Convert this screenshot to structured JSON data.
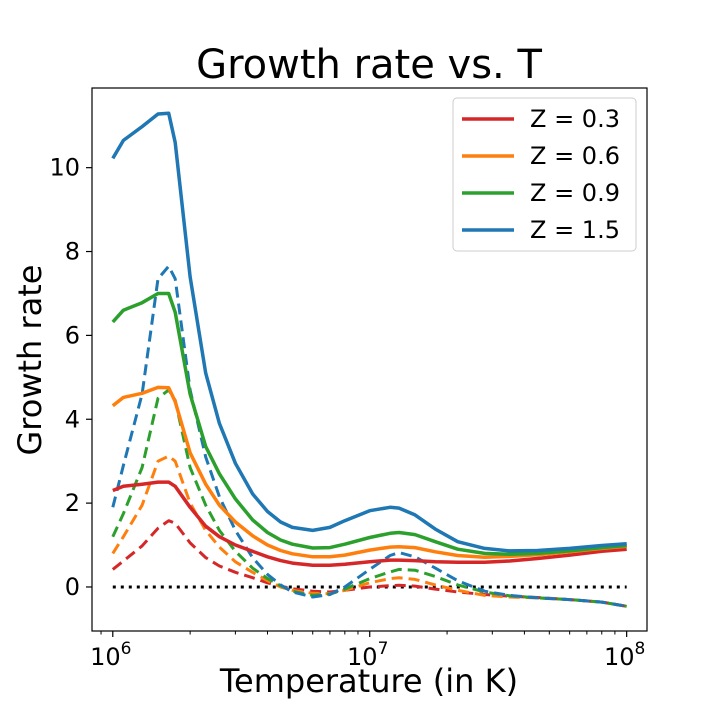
{
  "chart_data": {
    "type": "line",
    "title": "Growth rate vs. T",
    "xlabel": "Temperature (in K)",
    "ylabel": "Growth rate",
    "xscale": "log",
    "xlim": [
      830000,
      120000000
    ],
    "ylim": [
      -1.05,
      11.9
    ],
    "x_ticks": [
      {
        "value": 1000000,
        "base": "10",
        "exp": "6"
      },
      {
        "value": 10000000,
        "base": "10",
        "exp": "7"
      },
      {
        "value": 100000000,
        "base": "10",
        "exp": "8"
      }
    ],
    "y_ticks": [
      0,
      2,
      4,
      6,
      8,
      10
    ],
    "grid": false,
    "legend_position": "top-right",
    "x": [
      1000000,
      1100000,
      1300000,
      1500000,
      1650000,
      1750000,
      2000000,
      2300000,
      2600000,
      3000000,
      3500000,
      4000000,
      4500000,
      5000000,
      6000000,
      7000000,
      8000000,
      10000000,
      12000000,
      13000000,
      15000000,
      18000000,
      22000000,
      28000000,
      35000000,
      45000000,
      60000000,
      80000000,
      100000000
    ],
    "series": [
      {
        "name": "Z = 0.3",
        "color": "#d62728",
        "solid": [
          2.3,
          2.4,
          2.45,
          2.5,
          2.5,
          2.4,
          1.9,
          1.45,
          1.2,
          1.0,
          0.85,
          0.72,
          0.63,
          0.57,
          0.52,
          0.52,
          0.54,
          0.6,
          0.64,
          0.64,
          0.63,
          0.6,
          0.59,
          0.59,
          0.62,
          0.68,
          0.76,
          0.85,
          0.9
        ],
        "dashed": [
          0.42,
          0.62,
          0.98,
          1.4,
          1.58,
          1.52,
          1.05,
          0.7,
          0.5,
          0.35,
          0.22,
          0.1,
          0.02,
          -0.04,
          -0.1,
          -0.12,
          -0.08,
          0.0,
          0.03,
          0.04,
          0.02,
          -0.05,
          -0.12,
          -0.18,
          -0.22,
          -0.25,
          -0.3,
          -0.36,
          -0.46
        ]
      },
      {
        "name": "Z = 0.6",
        "color": "#ff7f0e",
        "solid": [
          4.32,
          4.52,
          4.62,
          4.76,
          4.75,
          4.42,
          3.2,
          2.45,
          1.95,
          1.55,
          1.22,
          1.0,
          0.87,
          0.79,
          0.72,
          0.72,
          0.76,
          0.88,
          0.95,
          0.96,
          0.94,
          0.84,
          0.75,
          0.71,
          0.73,
          0.77,
          0.84,
          0.92,
          0.97
        ],
        "dashed": [
          0.8,
          1.2,
          1.95,
          3.0,
          3.12,
          3.0,
          2.0,
          1.35,
          0.95,
          0.6,
          0.35,
          0.15,
          0.0,
          -0.08,
          -0.15,
          -0.16,
          -0.08,
          0.1,
          0.2,
          0.22,
          0.18,
          0.05,
          -0.08,
          -0.2,
          -0.24,
          -0.26,
          -0.3,
          -0.36,
          -0.46
        ]
      },
      {
        "name": "Z = 0.9",
        "color": "#2ca02c",
        "solid": [
          6.32,
          6.6,
          6.78,
          7.0,
          7.0,
          6.55,
          4.6,
          3.35,
          2.7,
          2.1,
          1.6,
          1.3,
          1.12,
          1.02,
          0.93,
          0.94,
          1.02,
          1.18,
          1.28,
          1.3,
          1.25,
          1.08,
          0.9,
          0.8,
          0.78,
          0.8,
          0.86,
          0.94,
          0.99
        ],
        "dashed": [
          1.2,
          1.75,
          2.85,
          4.5,
          4.7,
          4.45,
          2.85,
          1.95,
          1.35,
          0.85,
          0.45,
          0.2,
          0.03,
          -0.1,
          -0.2,
          -0.17,
          -0.05,
          0.2,
          0.36,
          0.42,
          0.4,
          0.25,
          0.05,
          -0.12,
          -0.21,
          -0.26,
          -0.3,
          -0.36,
          -0.46
        ]
      },
      {
        "name": "Z = 1.5",
        "color": "#1f77b4",
        "solid": [
          10.22,
          10.65,
          10.98,
          11.28,
          11.3,
          10.6,
          7.4,
          5.1,
          3.9,
          2.95,
          2.22,
          1.8,
          1.55,
          1.42,
          1.35,
          1.42,
          1.58,
          1.82,
          1.9,
          1.88,
          1.72,
          1.38,
          1.08,
          0.92,
          0.86,
          0.87,
          0.92,
          0.99,
          1.03
        ],
        "dashed": [
          1.9,
          2.9,
          4.6,
          7.35,
          7.65,
          7.35,
          4.7,
          3.1,
          2.15,
          1.35,
          0.7,
          0.3,
          0.05,
          -0.12,
          -0.24,
          -0.18,
          0.0,
          0.42,
          0.75,
          0.82,
          0.72,
          0.45,
          0.15,
          -0.1,
          -0.2,
          -0.26,
          -0.3,
          -0.36,
          -0.46
        ]
      }
    ],
    "reference_line": {
      "y": 0,
      "style": "dotted",
      "color": "#000000",
      "x_from": 1000000,
      "x_to": 100000000
    }
  }
}
